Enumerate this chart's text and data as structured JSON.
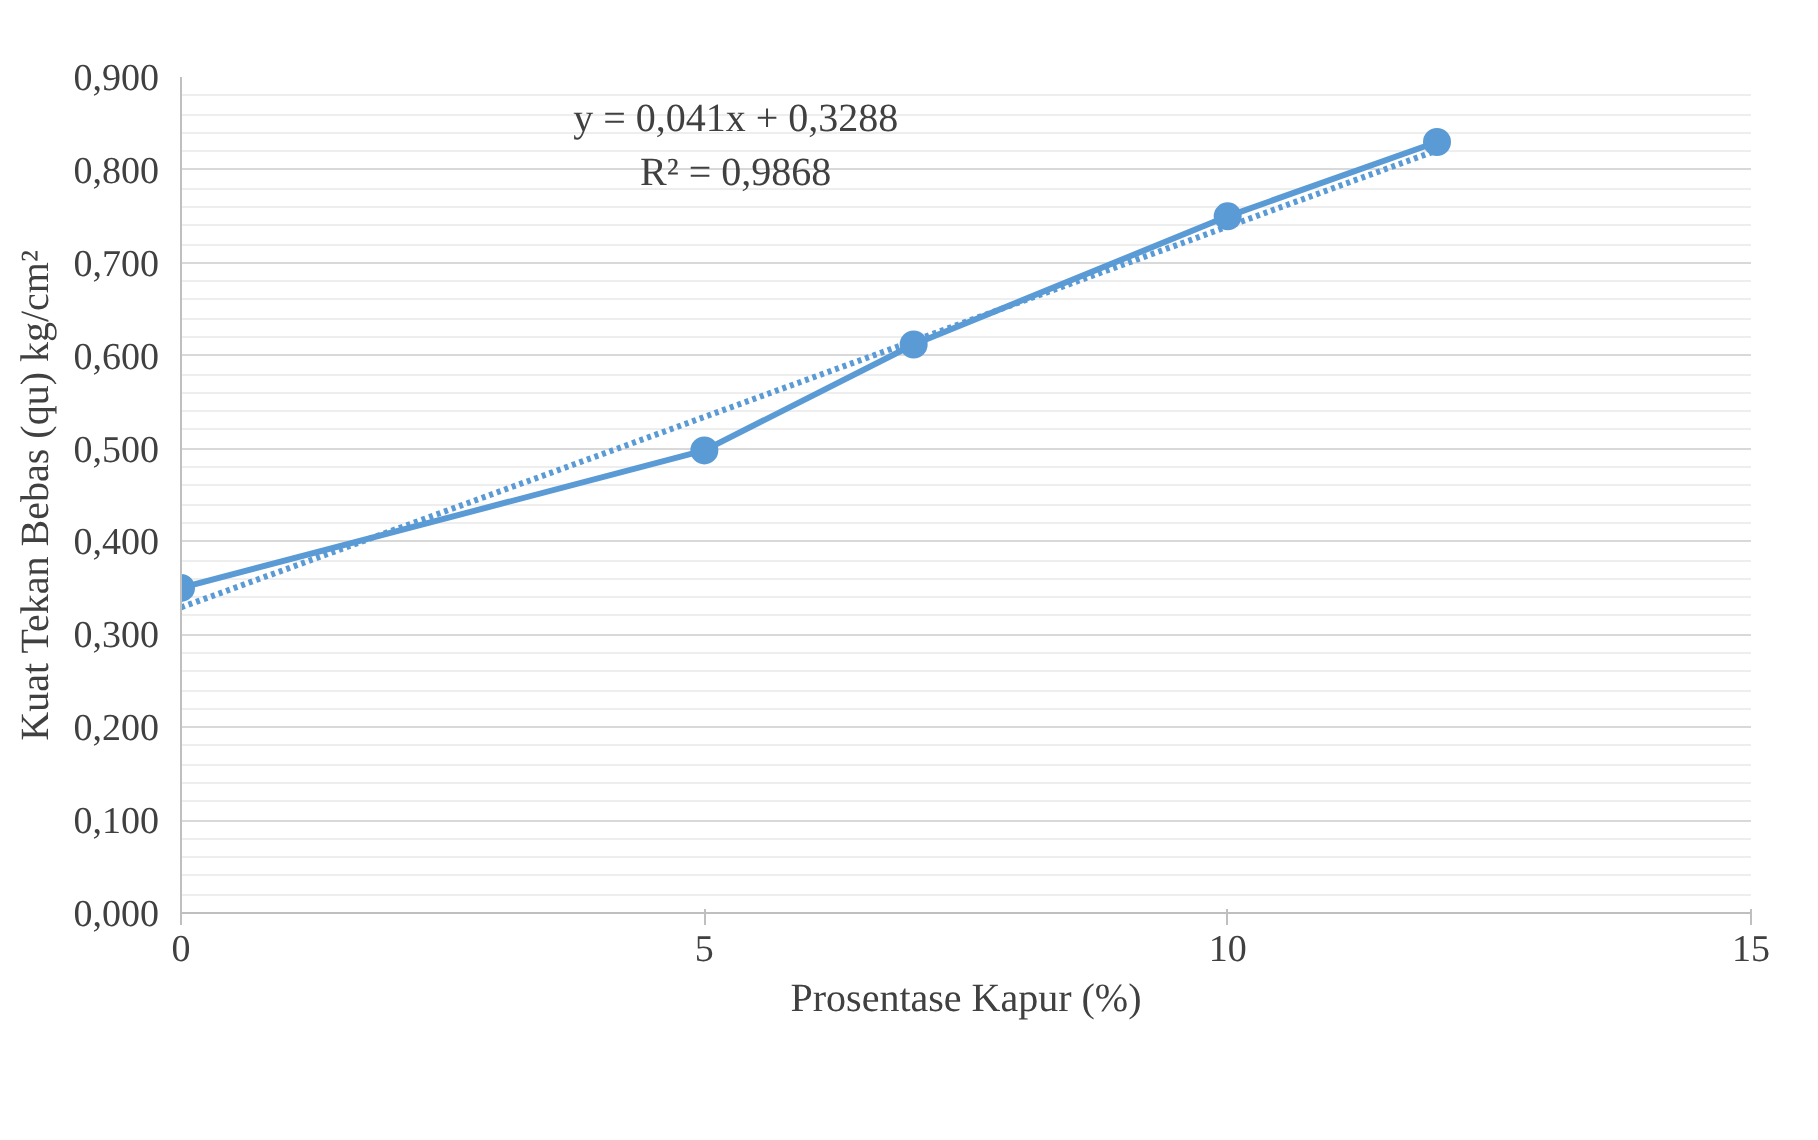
{
  "chart_data": {
    "type": "line",
    "xlabel": "Prosentase Kapur (%)",
    "ylabel": "Kuat Tekan Bebas (qu) kg/cm²",
    "x": [
      0,
      5,
      7,
      10,
      12
    ],
    "series": [
      {
        "color": "#5b9bd5",
        "values": [
          0.35,
          0.498,
          0.612,
          0.75,
          0.83
        ],
        "marker": "circle",
        "line_style": "solid"
      },
      {
        "type": "line",
        "x": [
          0,
          12
        ],
        "color": "#5b9bd5",
        "values": [
          0.329,
          0.821
        ],
        "marker": "none",
        "line_style": "dotted"
      }
    ],
    "annotations": [
      "y = 0,041x + 0,3288",
      "R² = 0,9868"
    ],
    "xlim": [
      0,
      15
    ],
    "xticks": [
      0,
      5,
      10,
      15
    ],
    "ylim": [
      0,
      0.9
    ],
    "yticks": [
      {
        "value": 0,
        "label": "0,000"
      },
      {
        "value": 0.1,
        "label": "0,100"
      },
      {
        "value": 0.2,
        "label": "0,200"
      },
      {
        "value": 0.3,
        "label": "0,300"
      },
      {
        "value": 0.4,
        "label": "0,400"
      },
      {
        "value": 0.5,
        "label": "0,500"
      },
      {
        "value": 0.6,
        "label": "0,600"
      },
      {
        "value": 0.7,
        "label": "0,700"
      },
      {
        "value": 0.8,
        "label": "0,800"
      },
      {
        "value": 0.9,
        "label": "0,900"
      }
    ],
    "grid": "y"
  }
}
